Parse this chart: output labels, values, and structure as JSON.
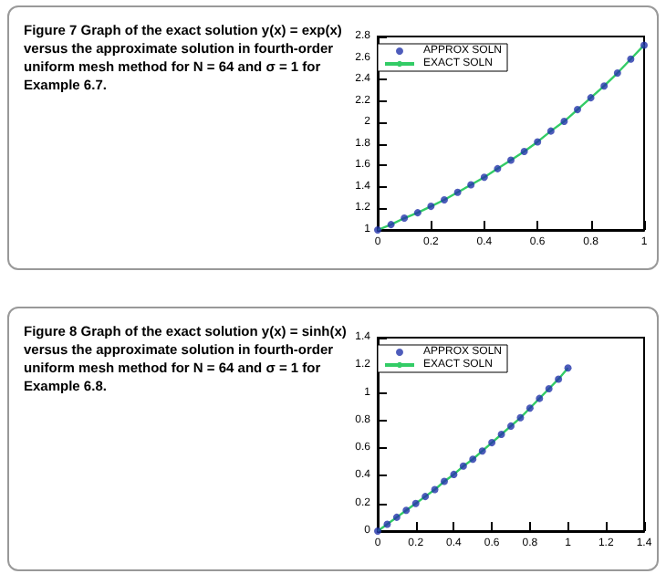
{
  "chart_data": [
    {
      "type": "line",
      "title": "Figure 7  Graph of the exact solution y(x) = exp(x) versus the approximate solution in fourth-order uniform mesh method for N = 64 and σ = 1 for Example 6.7.",
      "x": [
        0,
        0.05,
        0.1,
        0.15,
        0.2,
        0.25,
        0.3,
        0.35,
        0.4,
        0.45,
        0.5,
        0.55,
        0.6,
        0.65,
        0.7,
        0.75,
        0.8,
        0.85,
        0.9,
        0.95,
        1
      ],
      "series": [
        {
          "name": "APPROX SOLN",
          "type": "scatter",
          "marker": "circle",
          "color": "#2233aa",
          "values": [
            1,
            1.05,
            1.11,
            1.16,
            1.22,
            1.28,
            1.35,
            1.42,
            1.49,
            1.57,
            1.65,
            1.73,
            1.82,
            1.92,
            2.01,
            2.12,
            2.23,
            2.34,
            2.46,
            2.59,
            2.72
          ]
        },
        {
          "name": "EXACT SOLN",
          "type": "line",
          "color": "#33cc66",
          "values": [
            1,
            1.05,
            1.11,
            1.16,
            1.22,
            1.28,
            1.35,
            1.42,
            1.49,
            1.57,
            1.65,
            1.73,
            1.82,
            1.92,
            2.01,
            2.12,
            2.23,
            2.34,
            2.46,
            2.59,
            2.72
          ]
        }
      ],
      "xlim": [
        0,
        1
      ],
      "xticks": [
        0,
        0.2,
        0.4,
        0.6,
        0.8,
        1
      ],
      "ylim": [
        1,
        2.8
      ],
      "yticks": [
        1,
        1.2,
        1.4,
        1.6,
        1.8,
        2,
        2.2,
        2.4,
        2.6,
        2.8
      ],
      "legend": "top left",
      "grid": false
    },
    {
      "type": "line",
      "title": "Figure 8  Graph of the exact solution y(x) = sinh(x) versus the approximate solution in fourth-order uniform mesh method for N = 64 and σ = 1 for Example 6.8.",
      "x": [
        0,
        0.05,
        0.1,
        0.15,
        0.2,
        0.25,
        0.3,
        0.35,
        0.4,
        0.45,
        0.5,
        0.55,
        0.6,
        0.65,
        0.7,
        0.75,
        0.8,
        0.85,
        0.9,
        0.95,
        1
      ],
      "series": [
        {
          "name": "APPROX SOLN",
          "type": "scatter",
          "marker": "circle",
          "color": "#2233aa",
          "values": [
            0,
            0.05,
            0.1,
            0.15,
            0.2,
            0.25,
            0.3,
            0.36,
            0.41,
            0.47,
            0.52,
            0.58,
            0.64,
            0.7,
            0.76,
            0.82,
            0.89,
            0.96,
            1.03,
            1.1,
            1.18
          ]
        },
        {
          "name": "EXACT SOLN",
          "type": "line",
          "color": "#33cc66",
          "values": [
            0,
            0.05,
            0.1,
            0.15,
            0.2,
            0.25,
            0.3,
            0.36,
            0.41,
            0.47,
            0.52,
            0.58,
            0.64,
            0.7,
            0.76,
            0.82,
            0.89,
            0.96,
            1.03,
            1.1,
            1.18
          ]
        }
      ],
      "xlim": [
        0,
        1.4
      ],
      "xticks": [
        0,
        0.2,
        0.4,
        0.6,
        0.8,
        1,
        1.2,
        1.4
      ],
      "ylim": [
        0,
        1.4
      ],
      "yticks": [
        0,
        0.2,
        0.4,
        0.6,
        0.8,
        1,
        1.2,
        1.4
      ],
      "legend": "top left",
      "grid": false
    }
  ]
}
